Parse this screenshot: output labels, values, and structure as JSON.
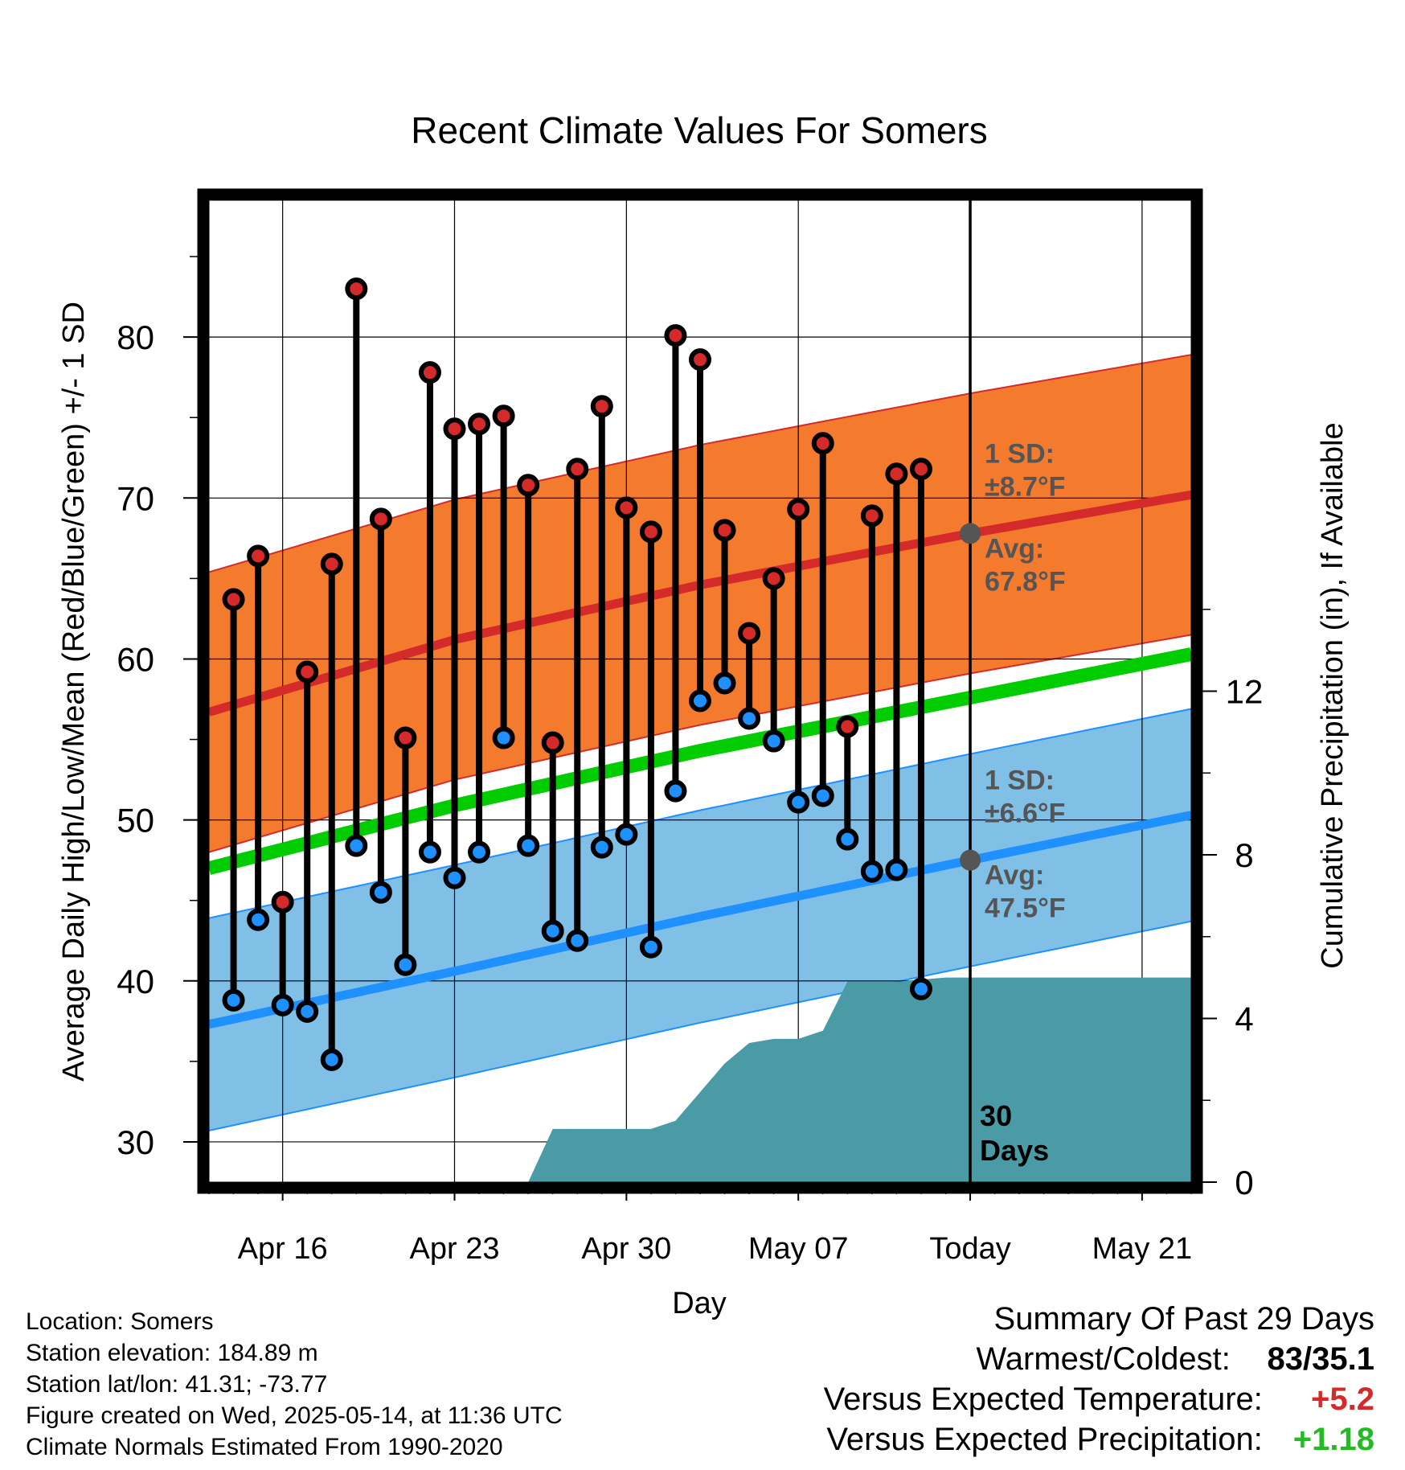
{
  "chart_data": {
    "type": "line",
    "title": "Recent Climate Values For Somers",
    "xlabel": "Day",
    "ylabel": "Average Daily High/Low/Mean (Red/Blue/Green) +/- 1 SD",
    "ylabel_right": "Cumulative Precipitation (in), If Available",
    "xlim": [
      "2025-04-13",
      "2025-05-23"
    ],
    "ylim": [
      27.5,
      88.5
    ],
    "ylim_right": [
      0,
      24
    ],
    "yticks": [
      30,
      40,
      50,
      60,
      70,
      80
    ],
    "yticks_right": [
      0,
      4,
      8,
      12
    ],
    "xticks": [
      {
        "date": "2025-04-16",
        "label": "Apr 16"
      },
      {
        "date": "2025-04-23",
        "label": "Apr 23"
      },
      {
        "date": "2025-04-30",
        "label": "Apr 30"
      },
      {
        "date": "2025-05-07",
        "label": "May 07"
      },
      {
        "date": "2025-05-14",
        "label": "Today"
      },
      {
        "date": "2025-05-21",
        "label": "May 21"
      }
    ],
    "grid": true,
    "today": "2025-05-14",
    "normals": {
      "high_mean": [
        {
          "date": "2025-04-13",
          "value": 56.7
        },
        {
          "date": "2025-04-23",
          "value": 61.2
        },
        {
          "date": "2025-05-03",
          "value": 64.6
        },
        {
          "date": "2025-05-14",
          "value": 67.8
        },
        {
          "date": "2025-05-23",
          "value": 70.2
        }
      ],
      "high_sd": 8.7,
      "low_mean": [
        {
          "date": "2025-04-13",
          "value": 37.3
        },
        {
          "date": "2025-04-23",
          "value": 40.6
        },
        {
          "date": "2025-05-03",
          "value": 44.0
        },
        {
          "date": "2025-05-14",
          "value": 47.5
        },
        {
          "date": "2025-05-23",
          "value": 50.3
        }
      ],
      "low_sd": 6.6,
      "mean": [
        {
          "date": "2025-04-13",
          "value": 47.0
        },
        {
          "date": "2025-04-23",
          "value": 50.9
        },
        {
          "date": "2025-05-03",
          "value": 54.3
        },
        {
          "date": "2025-05-14",
          "value": 57.6
        },
        {
          "date": "2025-05-23",
          "value": 60.3
        }
      ]
    },
    "series": [
      {
        "name": "High",
        "color": "#d42a2a",
        "points": [
          {
            "date": "2025-04-14",
            "value": 63.7
          },
          {
            "date": "2025-04-15",
            "value": 66.4
          },
          {
            "date": "2025-04-16",
            "value": 44.9
          },
          {
            "date": "2025-04-17",
            "value": 59.2
          },
          {
            "date": "2025-04-18",
            "value": 65.9
          },
          {
            "date": "2025-04-19",
            "value": 83.0
          },
          {
            "date": "2025-04-20",
            "value": 68.7
          },
          {
            "date": "2025-04-21",
            "value": 55.1
          },
          {
            "date": "2025-04-22",
            "value": 77.8
          },
          {
            "date": "2025-04-23",
            "value": 74.3
          },
          {
            "date": "2025-04-24",
            "value": 74.6
          },
          {
            "date": "2025-04-25",
            "value": 75.1
          },
          {
            "date": "2025-04-26",
            "value": 70.8
          },
          {
            "date": "2025-04-27",
            "value": 54.8
          },
          {
            "date": "2025-04-28",
            "value": 71.8
          },
          {
            "date": "2025-04-29",
            "value": 75.7
          },
          {
            "date": "2025-04-30",
            "value": 69.4
          },
          {
            "date": "2025-05-01",
            "value": 67.9
          },
          {
            "date": "2025-05-02",
            "value": 80.1
          },
          {
            "date": "2025-05-03",
            "value": 78.6
          },
          {
            "date": "2025-05-04",
            "value": 68.0
          },
          {
            "date": "2025-05-05",
            "value": 61.6
          },
          {
            "date": "2025-05-06",
            "value": 65.0
          },
          {
            "date": "2025-05-07",
            "value": 69.3
          },
          {
            "date": "2025-05-08",
            "value": 73.4
          },
          {
            "date": "2025-05-09",
            "value": 55.8
          },
          {
            "date": "2025-05-10",
            "value": 68.9
          },
          {
            "date": "2025-05-11",
            "value": 71.5
          },
          {
            "date": "2025-05-12",
            "value": 71.8
          }
        ]
      },
      {
        "name": "Low",
        "color": "#1e90ff",
        "points": [
          {
            "date": "2025-04-14",
            "value": 38.8
          },
          {
            "date": "2025-04-15",
            "value": 43.8
          },
          {
            "date": "2025-04-16",
            "value": 38.5
          },
          {
            "date": "2025-04-17",
            "value": 38.1
          },
          {
            "date": "2025-04-18",
            "value": 35.1
          },
          {
            "date": "2025-04-19",
            "value": 48.4
          },
          {
            "date": "2025-04-20",
            "value": 45.5
          },
          {
            "date": "2025-04-21",
            "value": 41.0
          },
          {
            "date": "2025-04-22",
            "value": 48.0
          },
          {
            "date": "2025-04-23",
            "value": 46.4
          },
          {
            "date": "2025-04-24",
            "value": 48.0
          },
          {
            "date": "2025-04-25",
            "value": 55.1
          },
          {
            "date": "2025-04-26",
            "value": 48.4
          },
          {
            "date": "2025-04-27",
            "value": 43.1
          },
          {
            "date": "2025-04-28",
            "value": 42.5
          },
          {
            "date": "2025-04-29",
            "value": 48.3
          },
          {
            "date": "2025-04-30",
            "value": 49.1
          },
          {
            "date": "2025-05-01",
            "value": 42.1
          },
          {
            "date": "2025-05-02",
            "value": 51.8
          },
          {
            "date": "2025-05-03",
            "value": 57.4
          },
          {
            "date": "2025-05-04",
            "value": 58.5
          },
          {
            "date": "2025-05-05",
            "value": 56.3
          },
          {
            "date": "2025-05-06",
            "value": 54.9
          },
          {
            "date": "2025-05-07",
            "value": 51.1
          },
          {
            "date": "2025-05-08",
            "value": 51.5
          },
          {
            "date": "2025-05-09",
            "value": 48.8
          },
          {
            "date": "2025-05-10",
            "value": 46.8
          },
          {
            "date": "2025-05-11",
            "value": 46.9
          },
          {
            "date": "2025-05-12",
            "value": 39.5
          }
        ]
      },
      {
        "name": "Cumulative Precipitation",
        "color": "#4a9ba5",
        "axis": "right",
        "points": [
          {
            "date": "2025-04-26",
            "value": 0.0
          },
          {
            "date": "2025-04-27",
            "value": 1.3
          },
          {
            "date": "2025-05-01",
            "value": 1.3
          },
          {
            "date": "2025-05-02",
            "value": 1.5
          },
          {
            "date": "2025-05-03",
            "value": 2.2
          },
          {
            "date": "2025-05-04",
            "value": 2.9
          },
          {
            "date": "2025-05-05",
            "value": 3.4
          },
          {
            "date": "2025-05-06",
            "value": 3.5
          },
          {
            "date": "2025-05-07",
            "value": 3.5
          },
          {
            "date": "2025-05-08",
            "value": 3.7
          },
          {
            "date": "2025-05-09",
            "value": 4.9
          },
          {
            "date": "2025-05-11",
            "value": 4.9
          },
          {
            "date": "2025-05-13",
            "value": 5.0
          },
          {
            "date": "2025-05-23",
            "value": 5.0
          }
        ]
      }
    ],
    "annotations": {
      "high": {
        "sd_label": "1 SD:",
        "sd_value": "±8.7°F",
        "avg_label": "Avg:",
        "avg_value": "67.8°F"
      },
      "low": {
        "sd_label": "1 SD:",
        "sd_value": "±6.6°F",
        "avg_label": "Avg:",
        "avg_value": "47.5°F"
      },
      "window": "30 Days"
    },
    "colors": {
      "high_band": "#f47a2e",
      "high_band_edge": "#d42a2a",
      "high_line": "#d42a2a",
      "low_band": "#80c0e6",
      "low_band_edge": "#1e90ff",
      "low_line": "#1e90ff",
      "mean_line": "#00cc00",
      "precip_fill": "#4a9ba5",
      "annotation_text": "#555555"
    }
  },
  "footer": {
    "location": "Location: Somers",
    "elevation": "Station elevation: 184.89 m",
    "latlon": "Station lat/lon: 41.31; -73.77",
    "created": "Figure created on Wed, 2025-05-14, at 11:36 UTC",
    "normals": "Climate Normals Estimated From 1990-2020"
  },
  "summary": {
    "title": "Summary Of Past 29 Days",
    "warmest_label": "Warmest/Coldest:",
    "warmest_value": "83/35.1",
    "temp_label": "Versus Expected Temperature:",
    "temp_value": "+5.2",
    "temp_color": "#d42a2a",
    "precip_label": "Versus Expected Precipitation:",
    "precip_value": "+1.18",
    "precip_color": "#22bb22"
  }
}
